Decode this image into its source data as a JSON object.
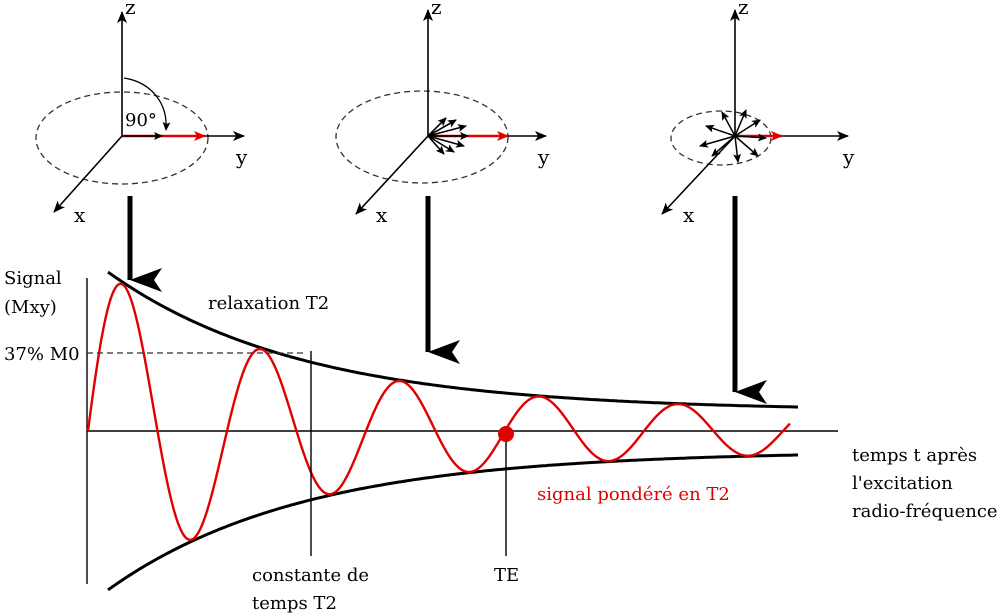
{
  "colors": {
    "ink": "#000000",
    "signal": "#e00000",
    "dashed": "#333333"
  },
  "diagrams": [
    {
      "axis_z": "z",
      "axis_y": "y",
      "axis_x": "x",
      "angle_label": "90°"
    },
    {
      "axis_z": "z",
      "axis_y": "y",
      "axis_x": "x"
    },
    {
      "axis_z": "z",
      "axis_y": "y",
      "axis_x": "x"
    }
  ],
  "graph": {
    "y_label_line1": "Signal",
    "y_label_line2": "(Mxy)",
    "level_label": "37% M0",
    "envelope_label": "relaxation T2",
    "signal_label": "signal pondéré en T2",
    "x_label_line1": "temps t après",
    "x_label_line2": "l'excitation",
    "x_label_line3": "radio-fréquence",
    "time_constant_line1": "constante de",
    "time_constant_line2": "temps T2",
    "te_label": "TE"
  }
}
